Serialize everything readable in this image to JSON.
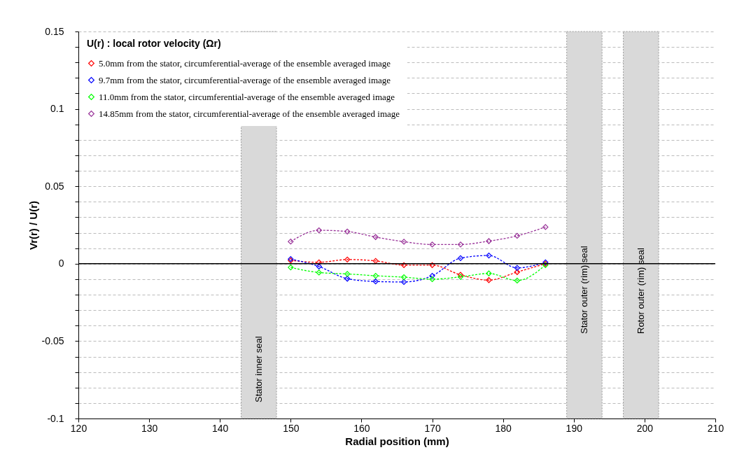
{
  "chart_data": {
    "type": "line",
    "xlabel": "Radial position (mm)",
    "ylabel": "Vr(r) / U(r)",
    "legend_title": "U(r) : local rotor velocity (Ωr)",
    "x": [
      150,
      154,
      158,
      162,
      166,
      170,
      174,
      178,
      182,
      186
    ],
    "series": [
      {
        "name": "5.0mm from the stator, circumferential-average of the ensemble averaged image",
        "color": "#ff0000",
        "values": [
          0.0021,
          0.0009,
          0.0027,
          0.0018,
          -0.0009,
          -0.0009,
          -0.0072,
          -0.0106,
          -0.0054,
          0
        ]
      },
      {
        "name": "9.7mm from the stator, circumferential-average of the ensemble averaged image",
        "color": "#0000ff",
        "values": [
          0.003,
          -0.0018,
          -0.0097,
          -0.0115,
          -0.0118,
          -0.0078,
          0.0036,
          0.0053,
          -0.0027,
          0.0009
        ]
      },
      {
        "name": "11.0mm from the stator, circumferential-average of the ensemble averaged image",
        "color": "#00ff00",
        "values": [
          -0.0024,
          -0.0057,
          -0.0066,
          -0.0078,
          -0.0087,
          -0.01,
          -0.0085,
          -0.0063,
          -0.0109,
          -0.0009
        ]
      },
      {
        "name": "14.85mm from the stator, circumferential-average of the ensemble averaged image",
        "color": "#993399",
        "values": [
          0.0143,
          0.0216,
          0.0208,
          0.0172,
          0.0142,
          0.0124,
          0.0124,
          0.0146,
          0.018,
          0.0237
        ]
      }
    ],
    "xlim": [
      120,
      210
    ],
    "xticks": [
      120,
      130,
      140,
      150,
      160,
      170,
      180,
      190,
      200,
      210
    ],
    "ylim": [
      -0.1,
      0.15
    ],
    "yticks": [
      0.15,
      {
        "value": 0.14,
        "label": null
      },
      {
        "value": 0.13,
        "label": null
      },
      {
        "value": 0.12,
        "label": null
      },
      {
        "value": 0.11,
        "label": null
      },
      0.1,
      {
        "value": 0.09,
        "label": null
      },
      {
        "value": 0.08,
        "label": null
      },
      {
        "value": 0.07,
        "label": null
      },
      {
        "value": 0.06,
        "label": null
      },
      0.05,
      {
        "value": 0.04,
        "label": null
      },
      {
        "value": 0.03,
        "label": null
      },
      {
        "value": 0.02,
        "label": null
      },
      {
        "value": 0.01,
        "label": null
      },
      0,
      {
        "value": -0.01,
        "label": null
      },
      {
        "value": -0.02,
        "label": null
      },
      {
        "value": -0.03,
        "label": null
      },
      {
        "value": -0.04,
        "label": null
      },
      -0.05,
      {
        "value": -0.06,
        "label": null
      },
      {
        "value": -0.07,
        "label": null
      },
      {
        "value": -0.08,
        "label": null
      },
      {
        "value": -0.09,
        "label": null
      },
      -0.1
    ],
    "bands": [
      {
        "axis": "x",
        "from": 143,
        "to": 148,
        "label": "Stator inner  seal",
        "color": "#d9d9d9"
      },
      {
        "axis": "x",
        "from": 189,
        "to": 194,
        "label": "Stator outer (rim) seal",
        "color": "#d9d9d9"
      },
      {
        "axis": "x",
        "from": 197,
        "to": 202,
        "label": "Rotor outer (rim) seal",
        "color": "#d9d9d9"
      }
    ],
    "ref_lines": [
      {
        "axis": "y",
        "value": 0,
        "color": "#000000"
      }
    ],
    "grid": "y",
    "legend": "top left",
    "marker": "diamond",
    "line_style": "dashed"
  }
}
